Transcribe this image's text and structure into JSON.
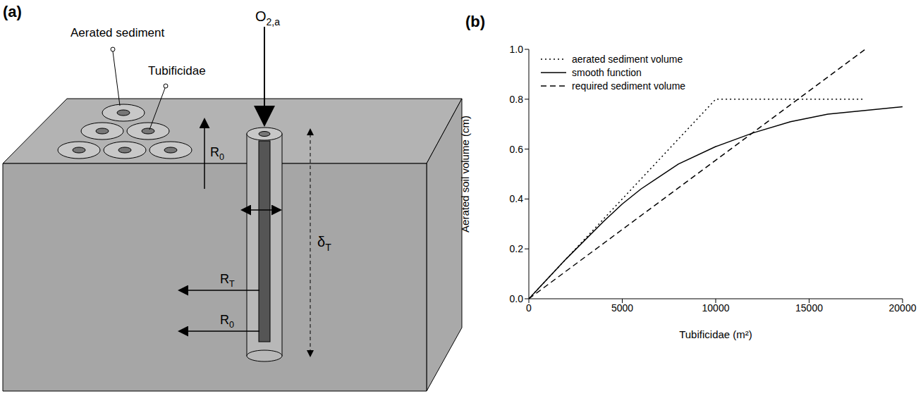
{
  "diagram": {
    "panel_label": "(a)",
    "labels": {
      "aerated_sediment": "Aerated sediment",
      "tubificidae": "Tubificidae",
      "oxygen": {
        "text": "O",
        "sub": "2,a"
      },
      "r_zero": {
        "text": "R",
        "sub": "0"
      },
      "r_t": {
        "text": "R",
        "sub": "T"
      },
      "delta_t": {
        "text": "δ",
        "sub": "T"
      }
    }
  },
  "chart_data": {
    "type": "line",
    "panel_label": "(b)",
    "x_label": "Tubificidae (m²)",
    "y_label": "Aerated soil volume (cm)",
    "xlim": [
      0,
      20000
    ],
    "xticks": [
      0,
      5000,
      10000,
      15000,
      20000
    ],
    "ylim": [
      0,
      1
    ],
    "yticks": [
      {
        "value": 0,
        "label": "0.0"
      },
      0.2,
      0.4,
      0.6,
      0.8,
      {
        "value": 1,
        "label": "1.0"
      }
    ],
    "grid": false,
    "legend": "upper left",
    "series": [
      {
        "name": "aerated sediment volume",
        "color": "#000000",
        "line_style": "dotted",
        "x": [
          0,
          10000,
          18000
        ],
        "values": [
          0,
          0.8,
          0.8
        ]
      },
      {
        "name": "smooth function",
        "color": "#000000",
        "line_style": "solid",
        "x": [
          0,
          2000,
          4000,
          5000,
          6000,
          8000,
          10000,
          12000,
          14000,
          16000,
          18000,
          20000
        ],
        "values": [
          0,
          0.16,
          0.31,
          0.38,
          0.44,
          0.54,
          0.61,
          0.665,
          0.71,
          0.74,
          0.755,
          0.77
        ]
      },
      {
        "name": "required sediment volume",
        "color": "#000000",
        "line_style": "dashed",
        "x": [
          0,
          18000
        ],
        "values": [
          0,
          1.0
        ]
      }
    ]
  }
}
